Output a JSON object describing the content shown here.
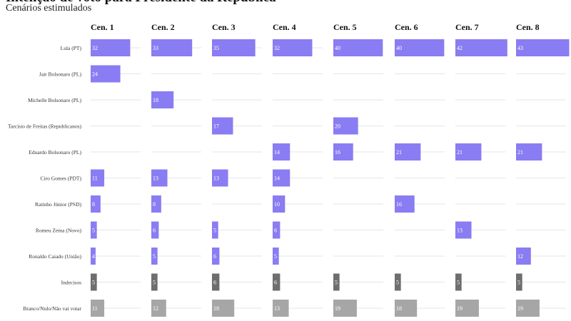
{
  "header": {
    "title": "Intenção de voto para Presidente da República",
    "subtitle": "Cenários estimulados"
  },
  "colors": {
    "candidate": "#8a7cf2",
    "undecided": "#6e6e6e",
    "blank": "#a6a6a6"
  },
  "chart_data": {
    "type": "bar",
    "layout": "small-multiples",
    "columns": [
      "Cen. 1",
      "Cen. 2",
      "Cen. 3",
      "Cen. 4",
      "Cen. 5",
      "Cen. 6",
      "Cen. 7",
      "Cen. 8"
    ],
    "xlim": [
      0,
      45
    ],
    "rows": [
      {
        "label": "Lula (PT)",
        "kind": "candidate",
        "values": [
          32,
          33,
          35,
          32,
          40,
          40,
          42,
          43
        ]
      },
      {
        "label": "Jair Bolsonaro (PL)",
        "kind": "candidate",
        "values": [
          24,
          null,
          null,
          null,
          null,
          null,
          null,
          null
        ]
      },
      {
        "label": "Michelle Bolsonaro (PL)",
        "kind": "candidate",
        "values": [
          null,
          18,
          null,
          null,
          null,
          null,
          null,
          null
        ]
      },
      {
        "label": "Tarcísio de Freitas (Republicanos)",
        "kind": "candidate",
        "values": [
          null,
          null,
          17,
          null,
          20,
          null,
          null,
          null
        ]
      },
      {
        "label": "Eduardo Bolsonaro (PL)",
        "kind": "candidate",
        "values": [
          null,
          null,
          null,
          14,
          16,
          21,
          21,
          21
        ]
      },
      {
        "label": "Ciro Gomes (PDT)",
        "kind": "candidate",
        "values": [
          11,
          13,
          13,
          14,
          null,
          null,
          null,
          null
        ]
      },
      {
        "label": "Ratinho Júnior (PSD)",
        "kind": "candidate",
        "values": [
          8,
          8,
          null,
          10,
          null,
          16,
          null,
          null
        ]
      },
      {
        "label": "Romeu Zema (Novo)",
        "kind": "candidate",
        "values": [
          5,
          6,
          5,
          6,
          null,
          null,
          13,
          null
        ]
      },
      {
        "label": "Ronaldo Caiado (União)",
        "kind": "candidate",
        "values": [
          4,
          5,
          6,
          5,
          null,
          null,
          null,
          12
        ]
      },
      {
        "label": "Indecisos",
        "kind": "undecided",
        "values": [
          5,
          5,
          6,
          6,
          5,
          5,
          5,
          5
        ]
      },
      {
        "label": "Branco/Nulo/Não vai votar",
        "kind": "blank",
        "values": [
          11,
          12,
          18,
          13,
          19,
          18,
          19,
          19
        ]
      }
    ]
  }
}
